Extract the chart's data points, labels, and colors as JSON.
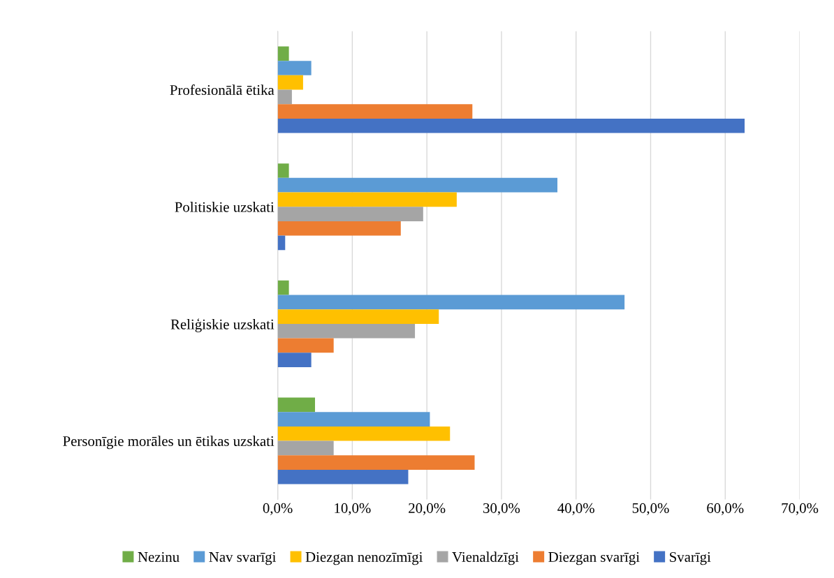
{
  "chart_data": {
    "type": "bar",
    "orientation": "horizontal",
    "categories": [
      "Profesionālā ētika",
      "Politiskie uzskati",
      "Reliģiskie uzskati",
      "Personīgie morāles un ētikas uzskati"
    ],
    "series": [
      {
        "name": "Nezinu",
        "color": "#70ad47",
        "values": [
          1.5,
          1.5,
          1.5,
          5.0
        ]
      },
      {
        "name": "Nav svarīgi",
        "color": "#5b9bd5",
        "values": [
          4.5,
          37.5,
          46.5,
          20.4
        ]
      },
      {
        "name": "Diezgan nenozīmīgi",
        "color": "#ffc000",
        "values": [
          3.4,
          24.0,
          21.6,
          23.1
        ]
      },
      {
        "name": "Vienaldzīgi",
        "color": "#a5a5a5",
        "values": [
          1.9,
          19.5,
          18.4,
          7.5
        ]
      },
      {
        "name": "Diezgan svarīgi",
        "color": "#ed7d31",
        "values": [
          26.1,
          16.5,
          7.5,
          26.4
        ]
      },
      {
        "name": "Svarīgi",
        "color": "#4472c4",
        "values": [
          62.6,
          1.0,
          4.5,
          17.5
        ]
      }
    ],
    "xlim": [
      0,
      70
    ],
    "xticks": [
      {
        "value": 0,
        "label": "0,0%"
      },
      {
        "value": 10,
        "label": "10,0%"
      },
      {
        "value": 20,
        "label": "20,0%"
      },
      {
        "value": 30,
        "label": "30,0%"
      },
      {
        "value": 40,
        "label": "40,0%"
      },
      {
        "value": 50,
        "label": "50,0%"
      },
      {
        "value": 60,
        "label": "60,0%"
      },
      {
        "value": 70,
        "label": "70,0%"
      }
    ],
    "grid": "x",
    "legend": "bottom"
  }
}
